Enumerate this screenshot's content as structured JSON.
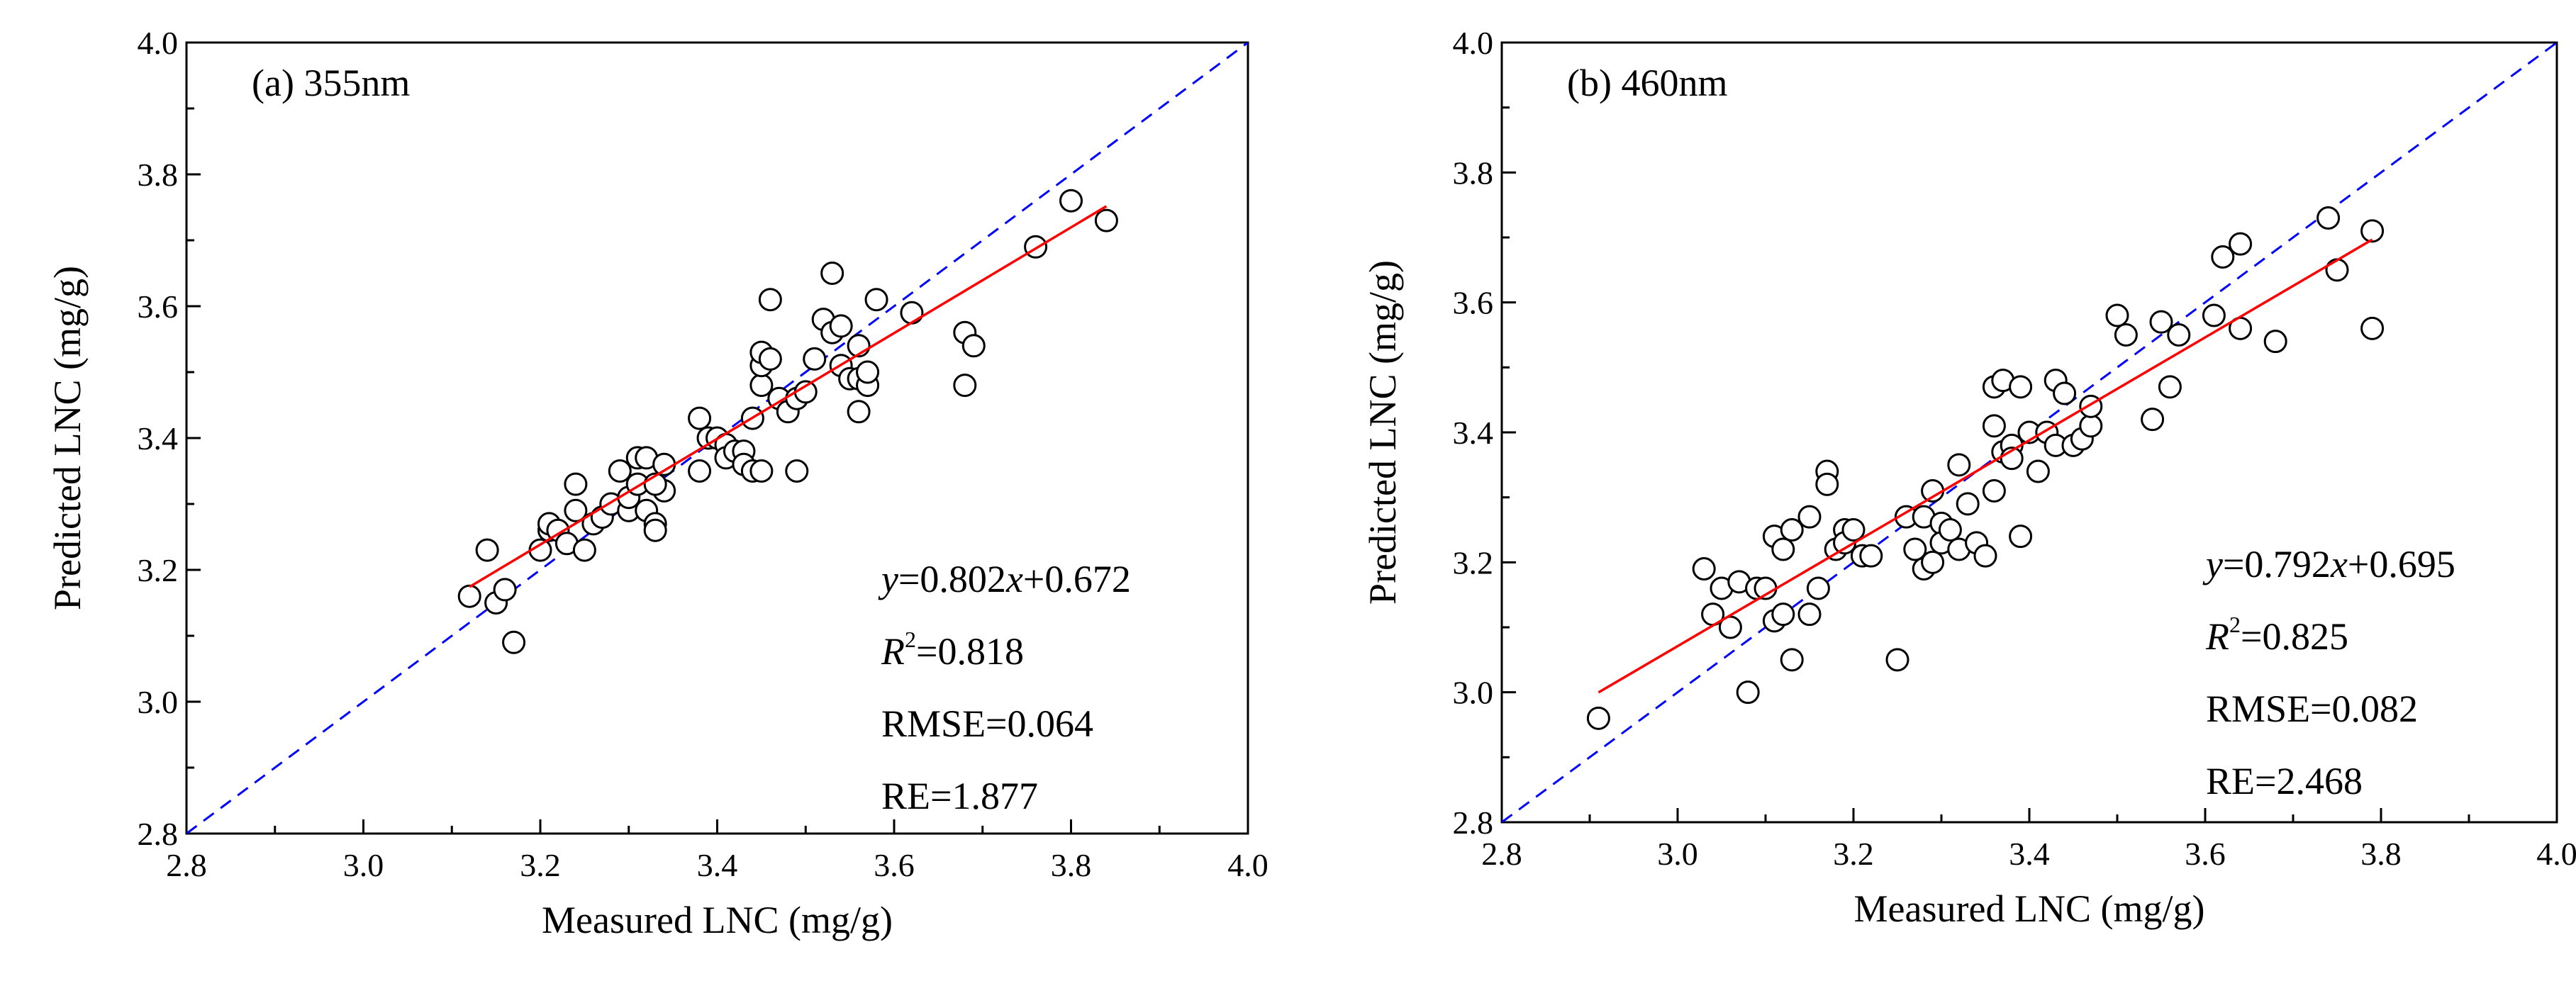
{
  "chart_data": [
    {
      "type": "scatter",
      "panel_label": "(a) 355nm",
      "xlabel": "Measured LNC (mg/g)",
      "ylabel": "Predicted LNC (mg/g)",
      "xlim": [
        2.8,
        4.0
      ],
      "ylim": [
        2.8,
        4.0
      ],
      "xticks": [
        "2.8",
        "3.0",
        "3.2",
        "3.4",
        "3.6",
        "3.8",
        "4.0"
      ],
      "yticks": [
        "2.8",
        "3.0",
        "3.2",
        "3.4",
        "3.6",
        "3.8",
        "4.0"
      ],
      "fit": {
        "slope": 0.802,
        "intercept": 0.672,
        "x_range": [
          3.12,
          3.84
        ],
        "color": "#ff0000"
      },
      "identity_line": {
        "color": "#0000ff",
        "style": "dashed"
      },
      "stats": {
        "eq_y": "y",
        "eq_rest": "=0.802",
        "eq_x": "x",
        "eq_tail": "+0.672",
        "r2": "=0.818",
        "rmse": "RMSE=0.064",
        "re": "RE=1.877"
      },
      "points": [
        [
          3.12,
          3.16
        ],
        [
          3.14,
          3.23
        ],
        [
          3.15,
          3.15
        ],
        [
          3.16,
          3.17
        ],
        [
          3.17,
          3.09
        ],
        [
          3.2,
          3.23
        ],
        [
          3.21,
          3.26
        ],
        [
          3.21,
          3.27
        ],
        [
          3.22,
          3.26
        ],
        [
          3.23,
          3.24
        ],
        [
          3.24,
          3.33
        ],
        [
          3.24,
          3.29
        ],
        [
          3.25,
          3.23
        ],
        [
          3.26,
          3.27
        ],
        [
          3.27,
          3.28
        ],
        [
          3.28,
          3.3
        ],
        [
          3.29,
          3.35
        ],
        [
          3.3,
          3.29
        ],
        [
          3.3,
          3.31
        ],
        [
          3.31,
          3.33
        ],
        [
          3.31,
          3.37
        ],
        [
          3.32,
          3.37
        ],
        [
          3.32,
          3.29
        ],
        [
          3.33,
          3.27
        ],
        [
          3.33,
          3.26
        ],
        [
          3.34,
          3.32
        ],
        [
          3.34,
          3.36
        ],
        [
          3.33,
          3.33
        ],
        [
          3.38,
          3.35
        ],
        [
          3.38,
          3.43
        ],
        [
          3.39,
          3.4
        ],
        [
          3.4,
          3.4
        ],
        [
          3.41,
          3.39
        ],
        [
          3.41,
          3.37
        ],
        [
          3.42,
          3.38
        ],
        [
          3.43,
          3.38
        ],
        [
          3.43,
          3.36
        ],
        [
          3.44,
          3.35
        ],
        [
          3.45,
          3.35
        ],
        [
          3.44,
          3.43
        ],
        [
          3.45,
          3.48
        ],
        [
          3.45,
          3.51
        ],
        [
          3.45,
          3.53
        ],
        [
          3.46,
          3.52
        ],
        [
          3.46,
          3.61
        ],
        [
          3.47,
          3.46
        ],
        [
          3.48,
          3.44
        ],
        [
          3.49,
          3.35
        ],
        [
          3.49,
          3.46
        ],
        [
          3.5,
          3.47
        ],
        [
          3.51,
          3.52
        ],
        [
          3.52,
          3.58
        ],
        [
          3.53,
          3.65
        ],
        [
          3.53,
          3.56
        ],
        [
          3.54,
          3.57
        ],
        [
          3.54,
          3.51
        ],
        [
          3.55,
          3.49
        ],
        [
          3.56,
          3.44
        ],
        [
          3.56,
          3.49
        ],
        [
          3.57,
          3.48
        ],
        [
          3.56,
          3.54
        ],
        [
          3.57,
          3.5
        ],
        [
          3.58,
          3.61
        ],
        [
          3.62,
          3.59
        ],
        [
          3.68,
          3.56
        ],
        [
          3.68,
          3.48
        ],
        [
          3.69,
          3.54
        ],
        [
          3.76,
          3.69
        ],
        [
          3.8,
          3.76
        ],
        [
          3.84,
          3.73
        ]
      ]
    },
    {
      "type": "scatter",
      "panel_label": "(b) 460nm",
      "xlabel": "Measured LNC (mg/g)",
      "ylabel": "Predicted LNC (mg/g)",
      "xlim": [
        2.8,
        4.0
      ],
      "ylim": [
        2.8,
        4.0
      ],
      "xticks": [
        "2.8",
        "3.0",
        "3.2",
        "3.4",
        "3.6",
        "3.8",
        "4.0"
      ],
      "yticks": [
        "2.8",
        "3.0",
        "3.2",
        "3.4",
        "3.6",
        "3.8",
        "4.0"
      ],
      "fit": {
        "slope": 0.792,
        "intercept": 0.695,
        "x_range": [
          2.91,
          3.79
        ],
        "color": "#ff0000"
      },
      "identity_line": {
        "color": "#0000ff",
        "style": "dashed"
      },
      "stats": {
        "eq_y": "y",
        "eq_rest": "=0.792",
        "eq_x": "x",
        "eq_tail": "+0.695",
        "r2": "=0.825",
        "rmse": "RMSE=0.082",
        "re": "RE=2.468"
      },
      "points": [
        [
          2.91,
          2.96
        ],
        [
          3.03,
          3.19
        ],
        [
          3.04,
          3.12
        ],
        [
          3.05,
          3.16
        ],
        [
          3.06,
          3.1
        ],
        [
          3.07,
          3.17
        ],
        [
          3.08,
          3.0
        ],
        [
          3.09,
          3.16
        ],
        [
          3.1,
          3.16
        ],
        [
          3.11,
          3.24
        ],
        [
          3.11,
          3.11
        ],
        [
          3.12,
          3.12
        ],
        [
          3.12,
          3.22
        ],
        [
          3.13,
          3.25
        ],
        [
          3.13,
          3.05
        ],
        [
          3.15,
          3.12
        ],
        [
          3.15,
          3.27
        ],
        [
          3.16,
          3.16
        ],
        [
          3.17,
          3.34
        ],
        [
          3.17,
          3.32
        ],
        [
          3.18,
          3.22
        ],
        [
          3.19,
          3.25
        ],
        [
          3.19,
          3.23
        ],
        [
          3.2,
          3.25
        ],
        [
          3.21,
          3.21
        ],
        [
          3.22,
          3.21
        ],
        [
          3.25,
          3.05
        ],
        [
          3.26,
          3.27
        ],
        [
          3.27,
          3.22
        ],
        [
          3.28,
          3.19
        ],
        [
          3.28,
          3.27
        ],
        [
          3.29,
          3.2
        ],
        [
          3.29,
          3.31
        ],
        [
          3.3,
          3.26
        ],
        [
          3.3,
          3.23
        ],
        [
          3.31,
          3.25
        ],
        [
          3.32,
          3.35
        ],
        [
          3.32,
          3.22
        ],
        [
          3.33,
          3.29
        ],
        [
          3.34,
          3.23
        ],
        [
          3.35,
          3.21
        ],
        [
          3.36,
          3.31
        ],
        [
          3.36,
          3.41
        ],
        [
          3.36,
          3.47
        ],
        [
          3.37,
          3.48
        ],
        [
          3.37,
          3.37
        ],
        [
          3.38,
          3.38
        ],
        [
          3.38,
          3.36
        ],
        [
          3.39,
          3.24
        ],
        [
          3.39,
          3.47
        ],
        [
          3.4,
          3.4
        ],
        [
          3.41,
          3.34
        ],
        [
          3.42,
          3.4
        ],
        [
          3.43,
          3.48
        ],
        [
          3.43,
          3.38
        ],
        [
          3.44,
          3.46
        ],
        [
          3.45,
          3.38
        ],
        [
          3.46,
          3.39
        ],
        [
          3.47,
          3.41
        ],
        [
          3.47,
          3.44
        ],
        [
          3.5,
          3.58
        ],
        [
          3.51,
          3.55
        ],
        [
          3.54,
          3.42
        ],
        [
          3.55,
          3.57
        ],
        [
          3.56,
          3.47
        ],
        [
          3.57,
          3.55
        ],
        [
          3.61,
          3.58
        ],
        [
          3.62,
          3.67
        ],
        [
          3.64,
          3.69
        ],
        [
          3.64,
          3.56
        ],
        [
          3.68,
          3.54
        ],
        [
          3.74,
          3.73
        ],
        [
          3.75,
          3.65
        ],
        [
          3.79,
          3.71
        ],
        [
          3.79,
          3.56
        ]
      ]
    }
  ]
}
